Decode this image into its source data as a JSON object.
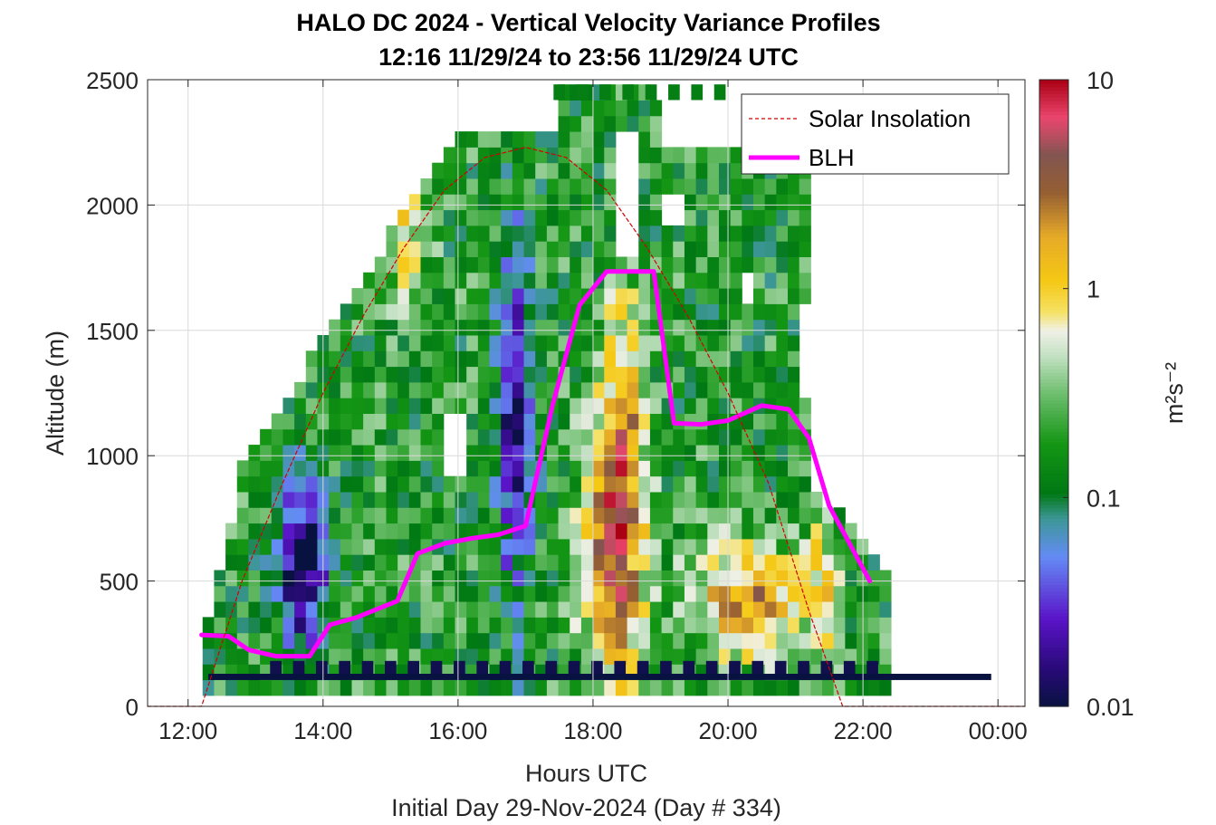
{
  "chart_data": {
    "type": "heatmap",
    "title": "HALO DC 2024 - Vertical Velocity Variance Profiles",
    "subtitle": "12:16 11/29/24 to 23:56 11/29/24  UTC",
    "xlabel": "Hours UTC",
    "ylabel": "Altitude (m)",
    "caption": "Initial Day 29-Nov-2024 (Day # 334)",
    "xlim": [
      11.4,
      24.4
    ],
    "ylim": [
      0,
      2500
    ],
    "x_ticks": [
      12,
      14,
      16,
      18,
      20,
      22,
      24
    ],
    "x_tick_labels": [
      "12:00",
      "14:00",
      "16:00",
      "18:00",
      "20:00",
      "22:00",
      "00:00"
    ],
    "y_ticks": [
      0,
      500,
      1000,
      1500,
      2000,
      2500
    ],
    "y_tick_labels": [
      "0",
      "500",
      "1000",
      "1500",
      "2000",
      "2500"
    ],
    "grid": true,
    "colorbar": {
      "label": "m²s⁻²",
      "scale": "log",
      "range": [
        0.01,
        10
      ],
      "tick_values": [
        0.01,
        0.1,
        1,
        10
      ],
      "tick_labels": [
        "0.01",
        "0.1",
        "1",
        "10"
      ]
    },
    "legend": {
      "position": "top-right",
      "entries": [
        "Solar Insolation",
        "BLH"
      ]
    },
    "series": [
      {
        "name": "BLH",
        "color": "#ff00ff",
        "x": [
          12.2,
          12.6,
          12.9,
          13.3,
          13.8,
          14.1,
          14.5,
          15.1,
          15.4,
          15.8,
          16.2,
          16.6,
          17.0,
          17.4,
          17.8,
          18.2,
          18.9,
          19.2,
          19.6,
          20.0,
          20.5,
          20.9,
          21.2,
          21.5,
          21.8,
          22.1
        ],
        "y": [
          285,
          280,
          225,
          200,
          200,
          325,
          355,
          420,
          610,
          650,
          670,
          685,
          720,
          1200,
          1600,
          1735,
          1735,
          1130,
          1125,
          1140,
          1200,
          1185,
          1070,
          800,
          650,
          500
        ]
      },
      {
        "name": "Solar Insolation",
        "color": "#d40000",
        "style": "dashed",
        "x": [
          11.4,
          12.2,
          12.8,
          13.4,
          14.0,
          14.6,
          15.2,
          15.8,
          16.4,
          17.0,
          17.6,
          18.2,
          18.8,
          19.4,
          20.0,
          20.6,
          21.2,
          21.7,
          22.2,
          24.4
        ],
        "y": [
          0,
          0,
          500,
          890,
          1250,
          1560,
          1830,
          2060,
          2190,
          2230,
          2190,
          2060,
          1830,
          1560,
          1250,
          890,
          380,
          0,
          0,
          0
        ]
      }
    ],
    "heatmap": {
      "x_start": 12.3,
      "x_step": 0.17,
      "y_start": 75,
      "y_step": 62.5,
      "gaps": [
        [
          13.0,
          13.2,
          1400,
          2300
        ],
        [
          15.85,
          16.1,
          900,
          1150
        ],
        [
          18.3,
          18.7,
          1800,
          2300
        ],
        [
          19.0,
          19.3,
          1900,
          2050
        ],
        [
          20.2,
          20.4,
          1600,
          1750
        ],
        [
          21.4,
          22.3,
          1100,
          1900
        ],
        [
          21.0,
          21.4,
          1250,
          1600
        ],
        [
          22.2,
          22.4,
          900,
          2300
        ],
        [
          18.9,
          21.5,
          2450,
          2500
        ]
      ],
      "components": [
        {
          "cx": 18.3,
          "cy": 600,
          "sx": 0.45,
          "sy": 550,
          "amp": 1.3
        },
        {
          "cx": 18.45,
          "cy": 1200,
          "sx": 0.28,
          "sy": 500,
          "amp": 0.8
        },
        {
          "cx": 20.3,
          "cy": 420,
          "sx": 0.8,
          "sy": 220,
          "amp": 1.1
        },
        {
          "cx": 16.85,
          "cy": 1150,
          "sx": 0.25,
          "sy": 700,
          "amp": -1.1
        },
        {
          "cx": 13.7,
          "cy": 560,
          "sx": 0.35,
          "sy": 300,
          "amp": -1.4
        },
        {
          "cx": 15.2,
          "cy": 1900,
          "sx": 0.35,
          "sy": 300,
          "amp": 0.55
        },
        {
          "cx": 21.4,
          "cy": 450,
          "sx": 0.25,
          "sy": 350,
          "amp": 0.6
        }
      ],
      "row_cells": [
        {
          "altitude": 2450,
          "x_from": 17.5,
          "x_to": 19.9,
          "v": 0.12
        },
        {
          "altitude": 150,
          "x_from": 13.3,
          "x_to": 22.3,
          "v": 0.011
        }
      ]
    },
    "bottom_band": {
      "x_from": 12.3,
      "x_to": 23.9,
      "altitude_from": 105,
      "altitude_to": 130,
      "value": 0.01
    }
  }
}
